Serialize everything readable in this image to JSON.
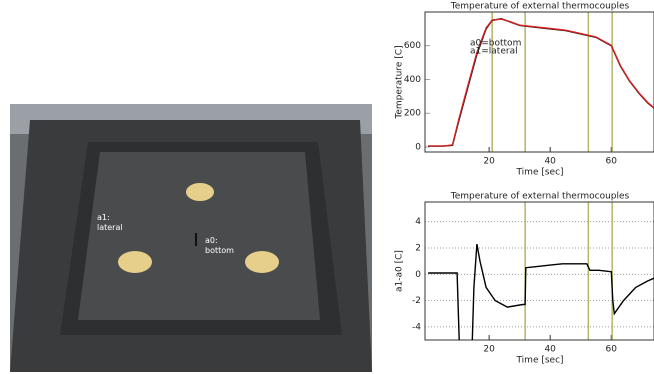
{
  "photo": {
    "labels": [
      [
        "a1:",
        "lateral"
      ],
      [
        "a0:",
        "bottom"
      ]
    ]
  },
  "chart_data": [
    {
      "type": "line",
      "title": "Temperature of external thermocouples",
      "x_label": "Time [sec]",
      "y_label": "Temperature [C]",
      "xlim": [
        -1,
        74
      ],
      "ylim": [
        -30,
        800
      ],
      "xticks": [
        20,
        40,
        60
      ],
      "yticks": [
        0,
        200,
        400,
        600
      ],
      "grid": false,
      "vlines": [
        21,
        31.8,
        52.5,
        60.3
      ],
      "vline_color": "#b5b56a",
      "x": [
        0,
        5,
        8,
        10,
        13,
        16,
        19,
        21,
        24,
        27,
        30,
        35,
        40,
        45,
        50,
        55,
        58,
        60,
        63,
        66,
        69,
        72,
        74
      ],
      "series": [
        {
          "name": "a0=bottom",
          "color": "#000000",
          "values": [
            5,
            5,
            10,
            150,
            350,
            550,
            700,
            750,
            760,
            740,
            720,
            710,
            700,
            690,
            670,
            650,
            620,
            600,
            480,
            390,
            320,
            260,
            230
          ]
        },
        {
          "name": "a1=lateral",
          "color": "#d62020",
          "values": [
            5,
            5,
            12,
            160,
            360,
            560,
            705,
            752,
            758,
            742,
            722,
            712,
            702,
            692,
            672,
            652,
            622,
            602,
            482,
            392,
            322,
            262,
            232
          ]
        }
      ]
    },
    {
      "type": "line",
      "title": "Temperature of external thermocouples",
      "x_label": "Time [sec]",
      "y_label": "a1-a0 [C]",
      "xlim": [
        -1,
        74
      ],
      "ylim": [
        -5,
        5.5
      ],
      "xticks": [
        20,
        40,
        60
      ],
      "yticks": [
        -4,
        -2,
        0,
        2,
        4
      ],
      "grid": true,
      "vlines": [
        31.8,
        52.5,
        60.3
      ],
      "vline_color": "#b5b56a",
      "x": [
        0,
        5,
        9.5,
        10.2,
        10.5,
        14.5,
        15,
        16,
        17,
        19,
        22,
        26,
        31,
        31.8,
        32,
        36,
        40,
        44,
        48,
        52,
        53,
        56,
        60,
        60.5,
        61,
        64,
        68,
        72,
        74
      ],
      "series": [
        {
          "name": "a1-a0",
          "color": "#000000",
          "values": [
            0.1,
            0.1,
            0.1,
            -5,
            null,
            -5,
            -1,
            2.3,
            1,
            -1,
            -2,
            -2.5,
            -2.3,
            -2.3,
            0.5,
            0.6,
            0.7,
            0.8,
            0.8,
            0.8,
            0.3,
            0.3,
            0.2,
            -2,
            -3,
            -2,
            -1,
            -0.5,
            -0.3
          ]
        }
      ]
    }
  ]
}
